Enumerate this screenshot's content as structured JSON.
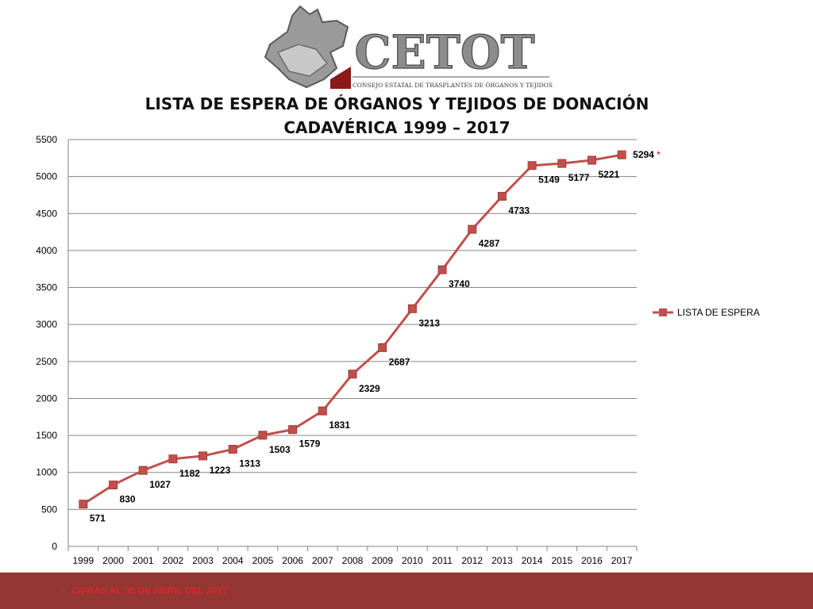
{
  "logo": {
    "name": "CETOT",
    "subtitle": "CONSEJO ESTATAL DE TRASPLANTES DE ÓRGANOS Y TEJIDOS"
  },
  "title_line1": "LISTA DE ESPERA DE ÓRGANOS Y TEJIDOS DE DONACIÓN",
  "title_line2": "CADAVÉRICA 1999 – 2017",
  "footnote": "CIFRAS AL 30 DE ABRIL DEL 2017",
  "colors": {
    "series": "#c0504d",
    "footer": "#943634",
    "footnote": "#d42a2a"
  },
  "chart_data": {
    "type": "line",
    "title": "LISTA DE ESPERA DE ÓRGANOS Y TEJIDOS DE DONACIÓN CADAVÉRICA 1999 – 2017",
    "x": [
      "1999",
      "2000",
      "2001",
      "2002",
      "2003",
      "2004",
      "2005",
      "2006",
      "2007",
      "2008",
      "2009",
      "2010",
      "2011",
      "2012",
      "2013",
      "2014",
      "2015",
      "2016",
      "2017"
    ],
    "series": [
      {
        "name": "LISTA DE ESPERA",
        "values": [
          571,
          830,
          1027,
          1182,
          1223,
          1313,
          1503,
          1579,
          1831,
          2329,
          2687,
          3213,
          3740,
          4287,
          4733,
          5149,
          5177,
          5221,
          5294
        ]
      }
    ],
    "ylim": [
      0,
      5500
    ],
    "yticks": [
      0,
      500,
      1000,
      1500,
      2000,
      2500,
      3000,
      3500,
      4000,
      4500,
      5000,
      5500
    ],
    "grid": true,
    "legend": "right",
    "annotation": "*"
  }
}
